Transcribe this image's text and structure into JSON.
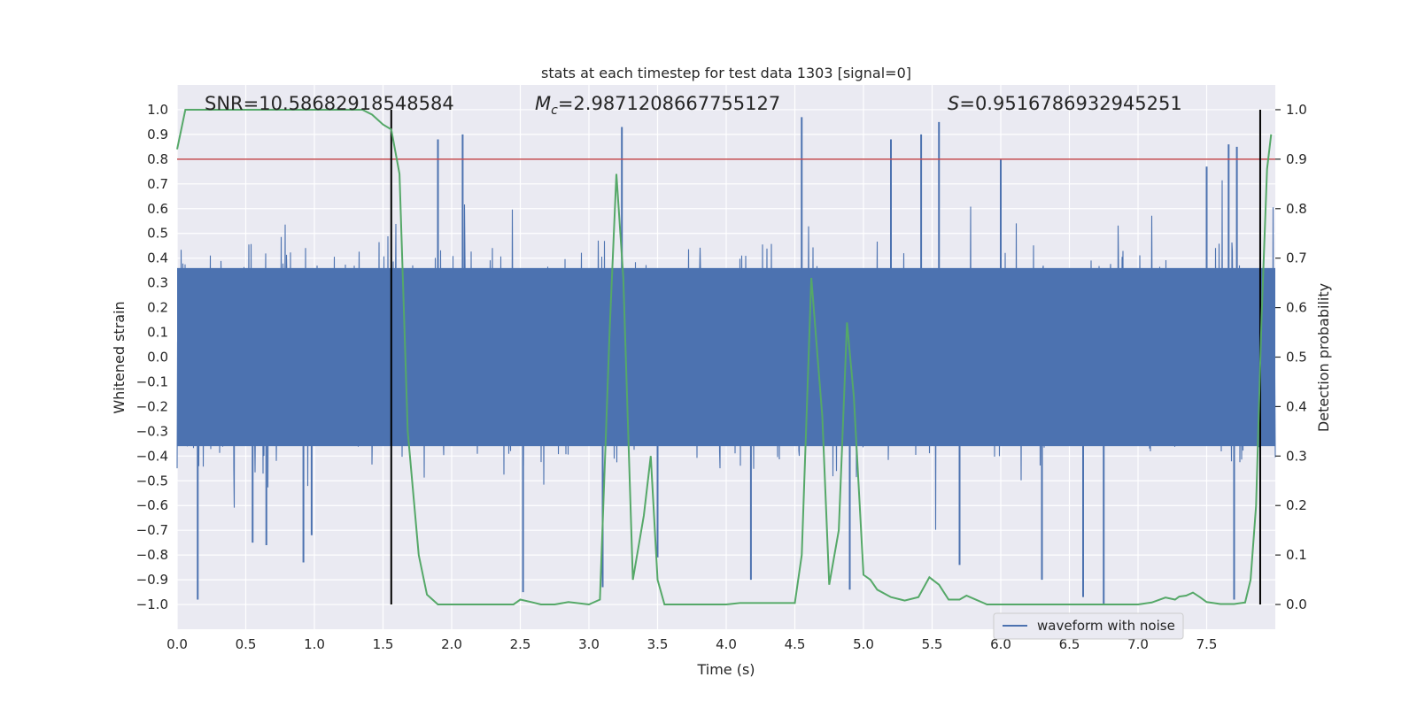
{
  "chart_data": {
    "type": "line",
    "title": "stats at each timestep for test data 1303 [signal=0]",
    "xlabel": "Time (s)",
    "ylabel_left": "Whitened strain",
    "ylabel_right": "Detection probability",
    "xlim": [
      0.0,
      8.0
    ],
    "ylim_left": [
      -1.1,
      1.1
    ],
    "ylim_right": [
      -0.05,
      1.05
    ],
    "x_ticks": [
      0.0,
      0.5,
      1.0,
      1.5,
      2.0,
      2.5,
      3.0,
      3.5,
      4.0,
      4.5,
      5.0,
      5.5,
      6.0,
      6.5,
      7.0,
      7.5
    ],
    "x_tick_labels": [
      "0.0",
      "0.5",
      "1.0",
      "1.5",
      "2.0",
      "2.5",
      "3.0",
      "3.5",
      "4.0",
      "4.5",
      "5.0",
      "5.5",
      "6.0",
      "6.5",
      "7.0",
      "7.5"
    ],
    "y_left_ticks": [
      1.0,
      0.9,
      0.8,
      0.7,
      0.6,
      0.5,
      0.4,
      0.3,
      0.2,
      0.1,
      0.0,
      -0.1,
      -0.2,
      -0.3,
      -0.4,
      -0.5,
      -0.6,
      -0.7,
      -0.8,
      -0.9,
      -1.0
    ],
    "y_left_tick_labels": [
      "1.0",
      "0.9",
      "0.8",
      "0.7",
      "0.6",
      "0.5",
      "0.4",
      "0.3",
      "0.2",
      "0.1",
      "0.0",
      "−0.1",
      "−0.2",
      "−0.3",
      "−0.4",
      "−0.5",
      "−0.6",
      "−0.7",
      "−0.8",
      "−0.9",
      "−1.0"
    ],
    "y_right_ticks": [
      1.0,
      0.9,
      0.8,
      0.7,
      0.6,
      0.5,
      0.4,
      0.3,
      0.2,
      0.1,
      0.0
    ],
    "y_right_tick_labels": [
      "1.0",
      "0.9",
      "0.8",
      "0.7",
      "0.6",
      "0.5",
      "0.4",
      "0.3",
      "0.2",
      "0.1",
      "0.0"
    ],
    "annotations": {
      "snr": "SNR=10.58682918548584",
      "mc_symbol": "M",
      "mc_subscript": "c",
      "mc_value": "=2.9871208667755127",
      "s_symbol": "S",
      "s_value": "=0.9516786932945251"
    },
    "threshold": {
      "y_right": 0.9,
      "color": "#c44e52"
    },
    "vertical_lines": [
      1.56,
      7.89
    ],
    "series": [
      {
        "name": "waveform with noise",
        "axis": "left",
        "color": "#4c72b0",
        "x_range": [
          0.0,
          8.0
        ],
        "envelope_typical": [
          -0.45,
          0.45
        ],
        "peaks": [
          {
            "x": 0.15,
            "y": -0.98
          },
          {
            "x": 0.55,
            "y": -0.75
          },
          {
            "x": 0.65,
            "y": -0.76
          },
          {
            "x": 0.92,
            "y": -0.83
          },
          {
            "x": 0.98,
            "y": -0.72
          },
          {
            "x": 1.9,
            "y": 0.88
          },
          {
            "x": 2.08,
            "y": 0.9
          },
          {
            "x": 2.52,
            "y": -0.95
          },
          {
            "x": 3.1,
            "y": -0.93
          },
          {
            "x": 3.24,
            "y": 0.93
          },
          {
            "x": 3.5,
            "y": -0.81
          },
          {
            "x": 4.18,
            "y": -0.9
          },
          {
            "x": 4.55,
            "y": 0.97
          },
          {
            "x": 4.9,
            "y": -0.94
          },
          {
            "x": 5.2,
            "y": 0.88
          },
          {
            "x": 5.42,
            "y": 0.9
          },
          {
            "x": 5.55,
            "y": 0.95
          },
          {
            "x": 5.7,
            "y": -0.84
          },
          {
            "x": 6.0,
            "y": 0.8
          },
          {
            "x": 6.3,
            "y": -0.9
          },
          {
            "x": 6.6,
            "y": -0.97
          },
          {
            "x": 6.75,
            "y": -1.0
          },
          {
            "x": 7.5,
            "y": 0.77
          },
          {
            "x": 7.66,
            "y": 0.86
          },
          {
            "x": 7.7,
            "y": -0.98
          },
          {
            "x": 7.72,
            "y": 0.85
          }
        ]
      },
      {
        "name": "",
        "axis": "right",
        "color": "#55a868",
        "x": [
          0.0,
          0.06,
          0.5,
          1.0,
          1.35,
          1.42,
          1.5,
          1.56,
          1.62,
          1.68,
          1.76,
          1.82,
          1.9,
          2.0,
          2.2,
          2.45,
          2.5,
          2.58,
          2.65,
          2.75,
          2.85,
          3.0,
          3.08,
          3.15,
          3.2,
          3.25,
          3.32,
          3.4,
          3.45,
          3.5,
          3.55,
          3.7,
          4.0,
          4.1,
          4.2,
          4.5,
          4.55,
          4.62,
          4.7,
          4.75,
          4.82,
          4.88,
          4.93,
          5.0,
          5.05,
          5.1,
          5.2,
          5.3,
          5.4,
          5.48,
          5.55,
          5.62,
          5.7,
          5.75,
          5.8,
          5.9,
          6.0,
          6.5,
          7.0,
          7.1,
          7.2,
          7.27,
          7.3,
          7.35,
          7.4,
          7.45,
          7.5,
          7.6,
          7.7,
          7.78,
          7.82,
          7.86,
          7.9,
          7.94,
          7.97
        ],
        "y": [
          0.92,
          1.0,
          1.0,
          1.0,
          1.0,
          0.99,
          0.97,
          0.96,
          0.87,
          0.35,
          0.1,
          0.02,
          0.0,
          0.0,
          0.0,
          0.0,
          0.01,
          0.005,
          0.0,
          0.0,
          0.005,
          0.0,
          0.01,
          0.55,
          0.87,
          0.66,
          0.05,
          0.18,
          0.3,
          0.05,
          0.0,
          0.0,
          0.0,
          0.003,
          0.003,
          0.003,
          0.1,
          0.66,
          0.38,
          0.04,
          0.15,
          0.57,
          0.42,
          0.06,
          0.05,
          0.03,
          0.015,
          0.008,
          0.015,
          0.055,
          0.04,
          0.01,
          0.01,
          0.018,
          0.012,
          0.0,
          0.0,
          0.0,
          0.0,
          0.004,
          0.014,
          0.01,
          0.016,
          0.018,
          0.024,
          0.015,
          0.005,
          0.001,
          0.001,
          0.004,
          0.05,
          0.2,
          0.58,
          0.88,
          0.95
        ]
      }
    ],
    "legend": {
      "placement": "lower-right",
      "entries": [
        "waveform with noise"
      ]
    },
    "grid": true,
    "colors": {
      "background": "#eaeaf2",
      "grid": "#ffffff",
      "vline": "#000000"
    }
  }
}
